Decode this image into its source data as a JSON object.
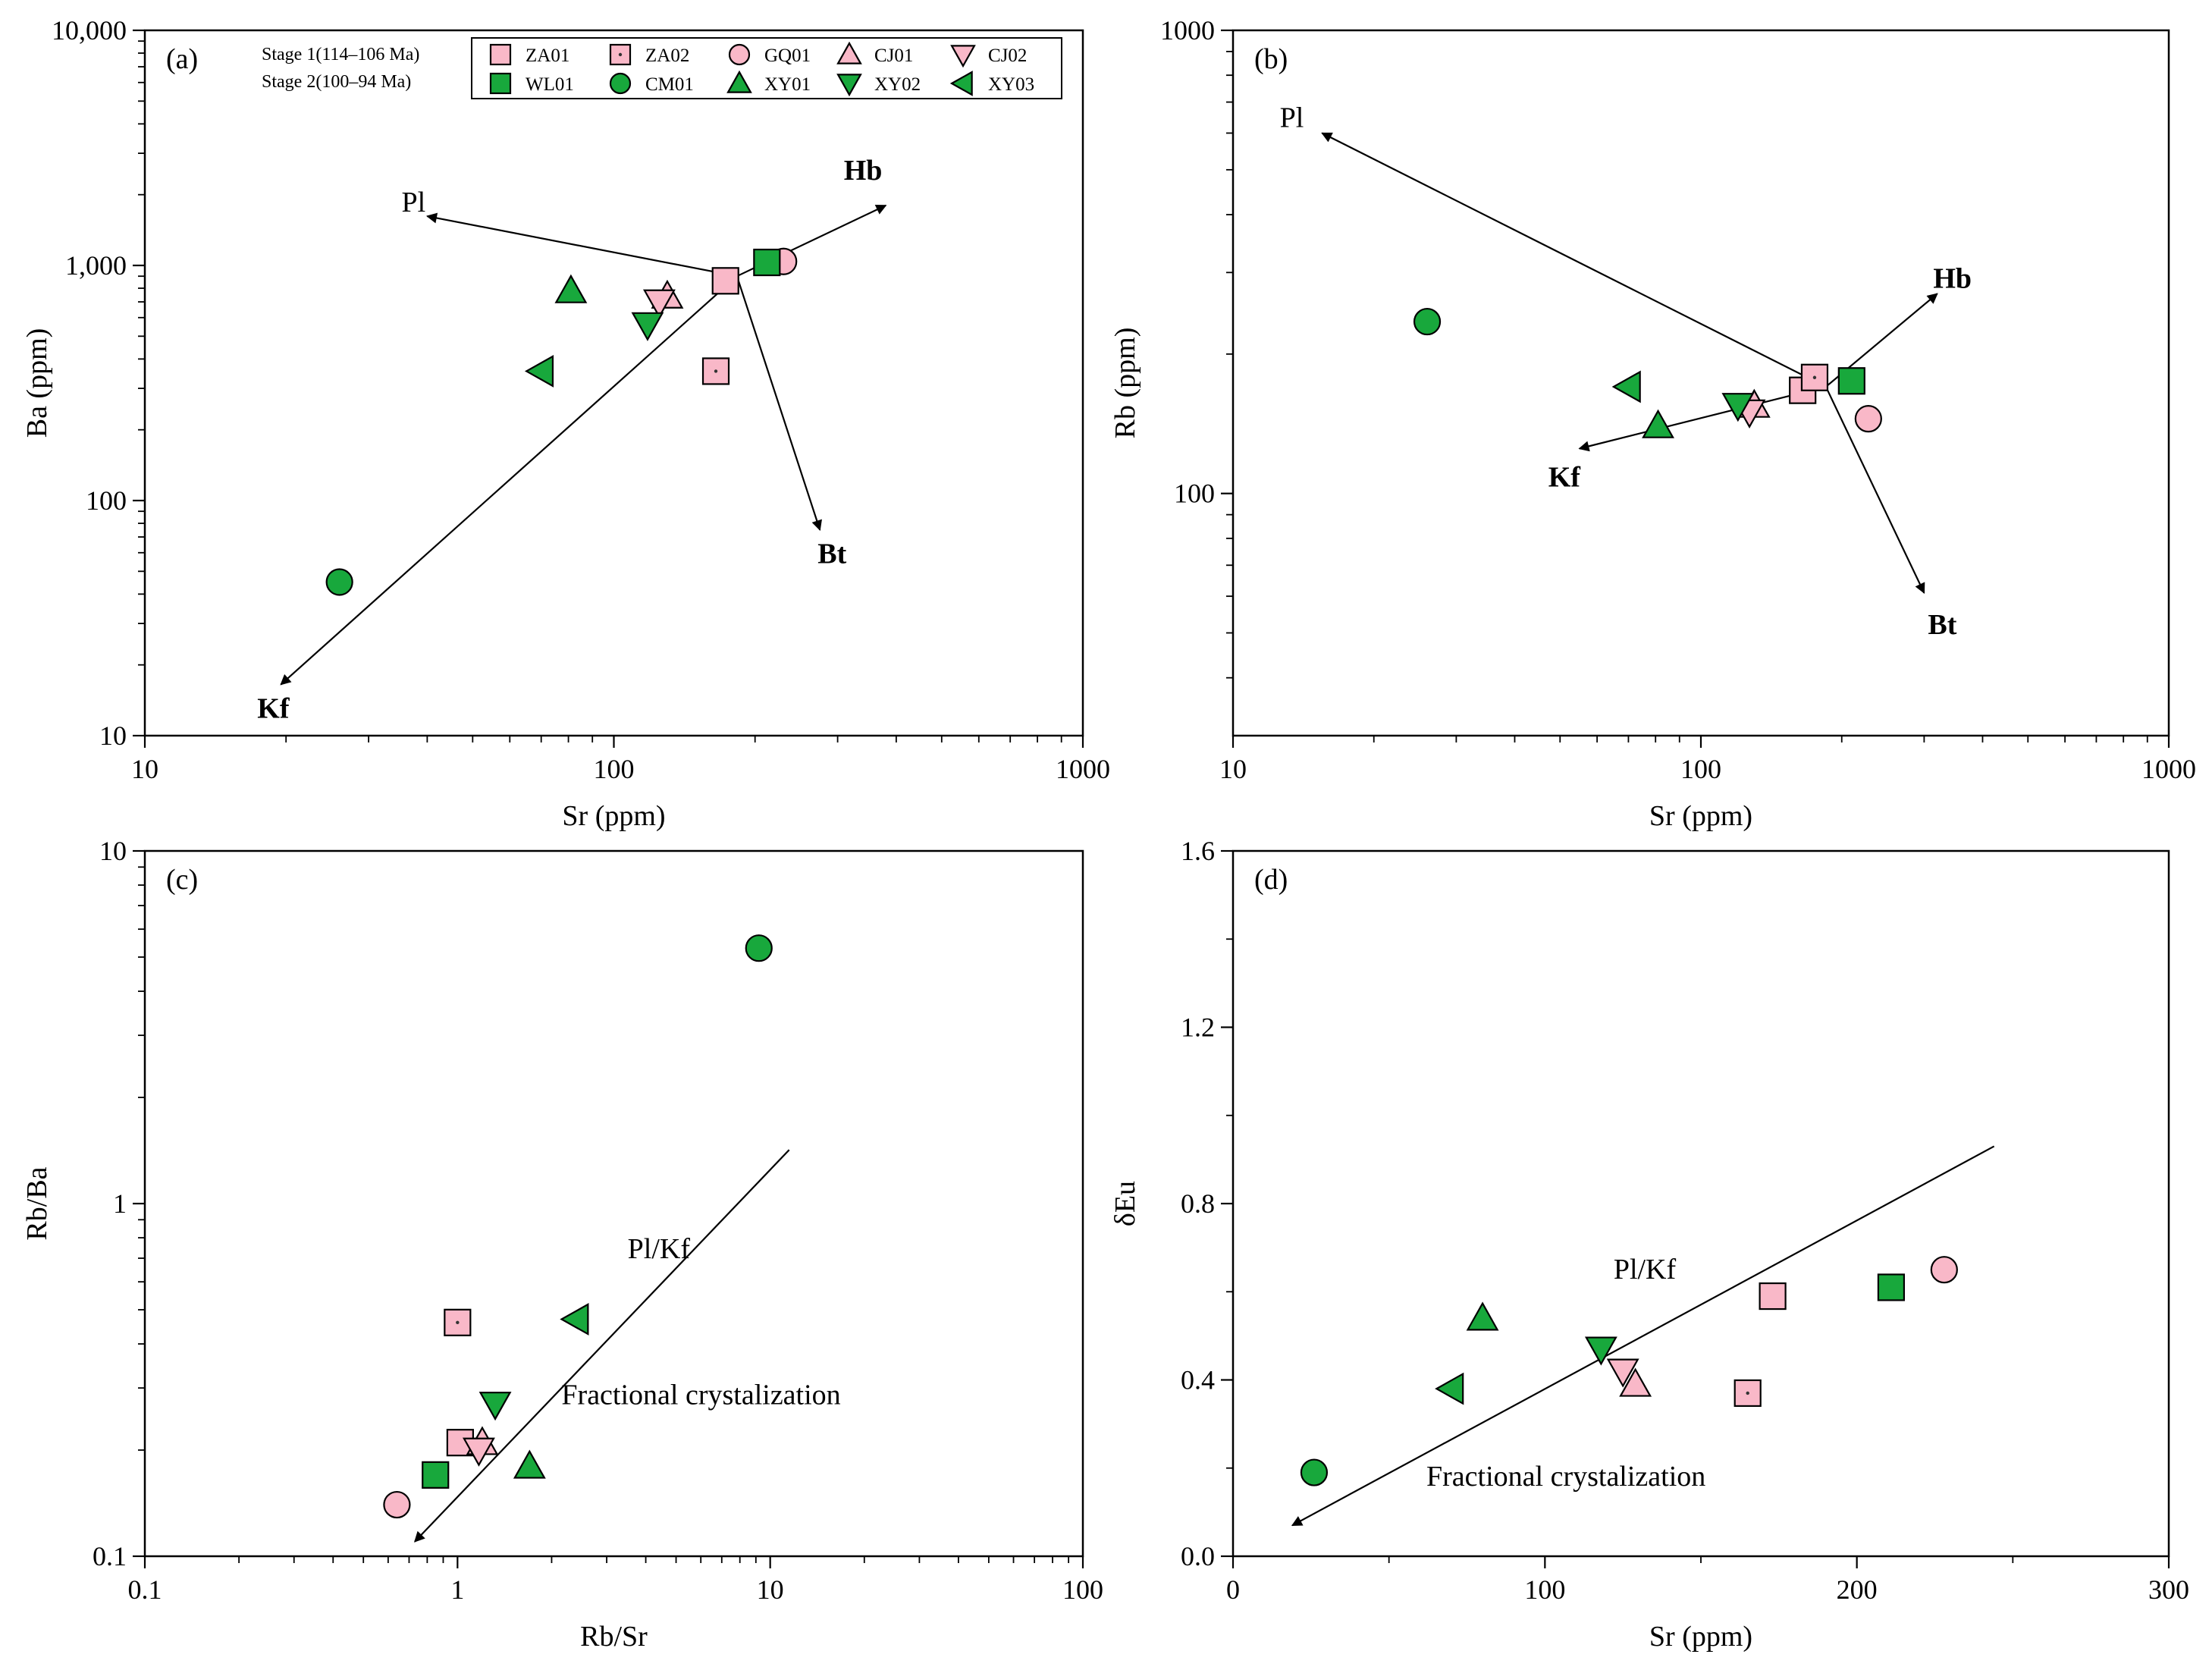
{
  "chart_data": [
    {
      "id": "a",
      "type": "scatter",
      "panel_label": "(a)",
      "xlabel": "Sr (ppm)",
      "ylabel": "Ba (ppm)",
      "xscale": "log",
      "yscale": "log",
      "xlim": [
        10,
        1000
      ],
      "ylim": [
        10,
        10000
      ],
      "xticks": [
        {
          "v": 10,
          "label": "10"
        },
        {
          "v": 100,
          "label": "100"
        },
        {
          "v": 1000,
          "label": "1000"
        }
      ],
      "yticks": [
        {
          "v": 10,
          "label": "10"
        },
        {
          "v": 100,
          "label": "100"
        },
        {
          "v": 1000,
          "label": "1,000"
        },
        {
          "v": 10000,
          "label": "10,000"
        }
      ],
      "points": [
        {
          "sample": "ZA01",
          "x": 173,
          "y": 860
        },
        {
          "sample": "ZA02",
          "x": 165,
          "y": 355
        },
        {
          "sample": "GQ01",
          "x": 230,
          "y": 1040
        },
        {
          "sample": "CJ01",
          "x": 130,
          "y": 740
        },
        {
          "sample": "CJ02",
          "x": 125,
          "y": 700
        },
        {
          "sample": "WL01",
          "x": 212,
          "y": 1030
        },
        {
          "sample": "CM01",
          "x": 26,
          "y": 45
        },
        {
          "sample": "XY01",
          "x": 81,
          "y": 780
        },
        {
          "sample": "XY02",
          "x": 118,
          "y": 560
        },
        {
          "sample": "XY03",
          "x": 70,
          "y": 355
        }
      ],
      "vectors": [
        {
          "label": "Pl",
          "bold": false,
          "from": [
            183,
            900
          ],
          "to": [
            40,
            1620
          ]
        },
        {
          "label": "Hb",
          "bold": true,
          "from": [
            183,
            900
          ],
          "to": [
            380,
            1800
          ]
        },
        {
          "label": "Bt",
          "bold": true,
          "from": [
            183,
            900
          ],
          "to": [
            275,
            75
          ]
        },
        {
          "label": "Kf",
          "bold": true,
          "from": [
            183,
            900
          ],
          "to": [
            19.5,
            16.5
          ]
        }
      ]
    },
    {
      "id": "b",
      "type": "scatter",
      "panel_label": "(b)",
      "xlabel": "Sr (ppm)",
      "ylabel": "Rb (ppm)",
      "xscale": "log",
      "yscale": "log",
      "xlim": [
        10,
        1000
      ],
      "ylim": [
        30,
        1000
      ],
      "xticks": [
        {
          "v": 10,
          "label": "10"
        },
        {
          "v": 100,
          "label": "100"
        },
        {
          "v": 1000,
          "label": "1000"
        }
      ],
      "yticks": [
        {
          "v": 100,
          "label": "100"
        },
        {
          "v": 1000,
          "label": "1000"
        }
      ],
      "points": [
        {
          "sample": "ZA01",
          "x": 165,
          "y": 167
        },
        {
          "sample": "ZA02",
          "x": 175,
          "y": 178
        },
        {
          "sample": "GQ01",
          "x": 228,
          "y": 145
        },
        {
          "sample": "CJ01",
          "x": 130,
          "y": 155
        },
        {
          "sample": "CJ02",
          "x": 127,
          "y": 150
        },
        {
          "sample": "WL01",
          "x": 210,
          "y": 175
        },
        {
          "sample": "CM01",
          "x": 26,
          "y": 235
        },
        {
          "sample": "XY01",
          "x": 81,
          "y": 140
        },
        {
          "sample": "XY02",
          "x": 120,
          "y": 155
        },
        {
          "sample": "XY03",
          "x": 70,
          "y": 170
        }
      ],
      "vectors": [
        {
          "label": "Pl",
          "bold": false,
          "from": [
            185,
            170
          ],
          "to": [
            15.5,
            600
          ]
        },
        {
          "label": "Hb",
          "bold": true,
          "from": [
            185,
            170
          ],
          "to": [
            320,
            270
          ]
        },
        {
          "label": "Bt",
          "bold": true,
          "from": [
            185,
            170
          ],
          "to": [
            300,
            61
          ]
        },
        {
          "label": "Kf",
          "bold": true,
          "from": [
            185,
            170
          ],
          "to": [
            55,
            125
          ]
        }
      ]
    },
    {
      "id": "c",
      "type": "scatter",
      "panel_label": "(c)",
      "xlabel": "Rb/Sr",
      "ylabel": "Rb/Ba",
      "xscale": "log",
      "yscale": "log",
      "xlim": [
        0.1,
        100
      ],
      "ylim": [
        0.1,
        10
      ],
      "xticks": [
        {
          "v": 0.1,
          "label": "0.1"
        },
        {
          "v": 1,
          "label": "1"
        },
        {
          "v": 10,
          "label": "10"
        },
        {
          "v": 100,
          "label": "100"
        }
      ],
      "yticks": [
        {
          "v": 0.1,
          "label": "0.1"
        },
        {
          "v": 1,
          "label": "1"
        },
        {
          "v": 10,
          "label": "10"
        }
      ],
      "points": [
        {
          "sample": "ZA01",
          "x": 1.02,
          "y": 0.21
        },
        {
          "sample": "ZA02",
          "x": 1.0,
          "y": 0.46
        },
        {
          "sample": "GQ01",
          "x": 0.64,
          "y": 0.14
        },
        {
          "sample": "CJ01",
          "x": 1.2,
          "y": 0.21
        },
        {
          "sample": "CJ02",
          "x": 1.17,
          "y": 0.2
        },
        {
          "sample": "WL01",
          "x": 0.85,
          "y": 0.17
        },
        {
          "sample": "CM01",
          "x": 9.2,
          "y": 5.3
        },
        {
          "sample": "XY01",
          "x": 1.7,
          "y": 0.18
        },
        {
          "sample": "XY02",
          "x": 1.32,
          "y": 0.27
        },
        {
          "sample": "XY03",
          "x": 2.4,
          "y": 0.47
        }
      ],
      "line": {
        "from": [
          11.5,
          1.42
        ],
        "to": [
          0.73,
          0.11
        ]
      },
      "annotations": [
        {
          "text": "Pl/Kf",
          "x": 3.5,
          "y": 0.7
        },
        {
          "text": "Fractional crystalization",
          "x": 2.15,
          "y": 0.27
        }
      ]
    },
    {
      "id": "d",
      "type": "scatter",
      "panel_label": "(d)",
      "xlabel": "Sr (ppm)",
      "ylabel": "δEu",
      "xscale": "linear",
      "yscale": "linear",
      "xlim": [
        0,
        300
      ],
      "ylim": [
        0,
        1.6
      ],
      "xticks": [
        {
          "v": 0,
          "label": "0"
        },
        {
          "v": 100,
          "label": "100"
        },
        {
          "v": 200,
          "label": "200"
        },
        {
          "v": 300,
          "label": "300"
        }
      ],
      "yticks": [
        {
          "v": 0,
          "label": "0.0"
        },
        {
          "v": 0.4,
          "label": "0.4"
        },
        {
          "v": 0.8,
          "label": "0.8"
        },
        {
          "v": 1.2,
          "label": "1.2"
        },
        {
          "v": 1.6,
          "label": "1.6"
        }
      ],
      "points": [
        {
          "sample": "ZA01",
          "x": 173,
          "y": 0.59
        },
        {
          "sample": "ZA02",
          "x": 165,
          "y": 0.37
        },
        {
          "sample": "GQ01",
          "x": 228,
          "y": 0.65
        },
        {
          "sample": "CJ01",
          "x": 129,
          "y": 0.39
        },
        {
          "sample": "CJ02",
          "x": 125,
          "y": 0.42
        },
        {
          "sample": "WL01",
          "x": 211,
          "y": 0.61
        },
        {
          "sample": "CM01",
          "x": 26,
          "y": 0.19
        },
        {
          "sample": "XY01",
          "x": 80,
          "y": 0.54
        },
        {
          "sample": "XY02",
          "x": 118,
          "y": 0.47
        },
        {
          "sample": "XY03",
          "x": 70,
          "y": 0.38
        }
      ],
      "line": {
        "from": [
          244,
          0.93
        ],
        "to": [
          19,
          0.07
        ]
      },
      "annotations": [
        {
          "text": "Pl/Kf",
          "x": 122,
          "y": 0.63
        },
        {
          "text": "Fractional crystalization",
          "x": 62,
          "y": 0.16
        }
      ]
    }
  ],
  "legend": {
    "stage1_label": "Stage 1(114–106 Ma)",
    "stage2_label": "Stage 2(100–94 Ma)",
    "stage1": [
      {
        "sample": "ZA01"
      },
      {
        "sample": "ZA02"
      },
      {
        "sample": "GQ01"
      },
      {
        "sample": "CJ01"
      },
      {
        "sample": "CJ02"
      }
    ],
    "stage2": [
      {
        "sample": "WL01"
      },
      {
        "sample": "CM01"
      },
      {
        "sample": "XY01"
      },
      {
        "sample": "XY02"
      },
      {
        "sample": "XY03"
      }
    ]
  },
  "styles": {
    "stage1_fill": "#f9b8c8",
    "stage2_fill": "#18a83c",
    "stroke": "#000000",
    "markers": {
      "ZA01": "square",
      "ZA02": "square-dot",
      "GQ01": "circle",
      "CJ01": "triangle-up",
      "CJ02": "triangle-down",
      "WL01": "square",
      "CM01": "circle",
      "XY01": "triangle-up",
      "XY02": "triangle-down",
      "XY03": "triangle-left"
    },
    "stages": {
      "ZA01": 1,
      "ZA02": 1,
      "GQ01": 1,
      "CJ01": 1,
      "CJ02": 1,
      "WL01": 2,
      "CM01": 2,
      "XY01": 2,
      "XY02": 2,
      "XY03": 2
    }
  }
}
